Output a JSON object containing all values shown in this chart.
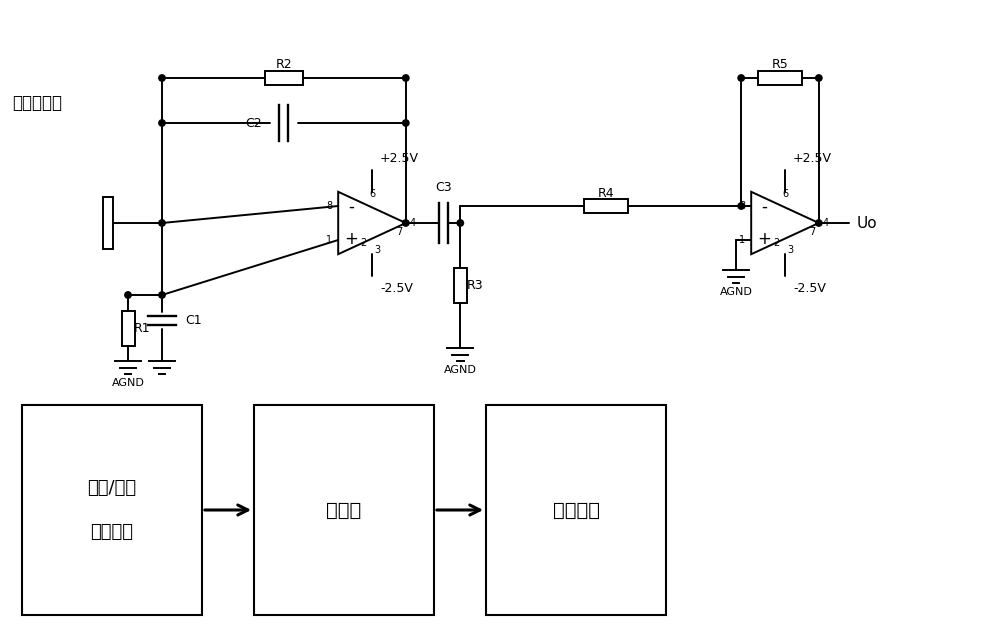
{
  "bg_color": "#ffffff",
  "line_color": "#000000",
  "fig_width": 10.0,
  "fig_height": 6.33,
  "sensor_label": "传感器电极",
  "block_labels": [
    "电荷/电压\n转换电路",
    "去直流",
    "电压放大"
  ],
  "output_label": "Uo"
}
